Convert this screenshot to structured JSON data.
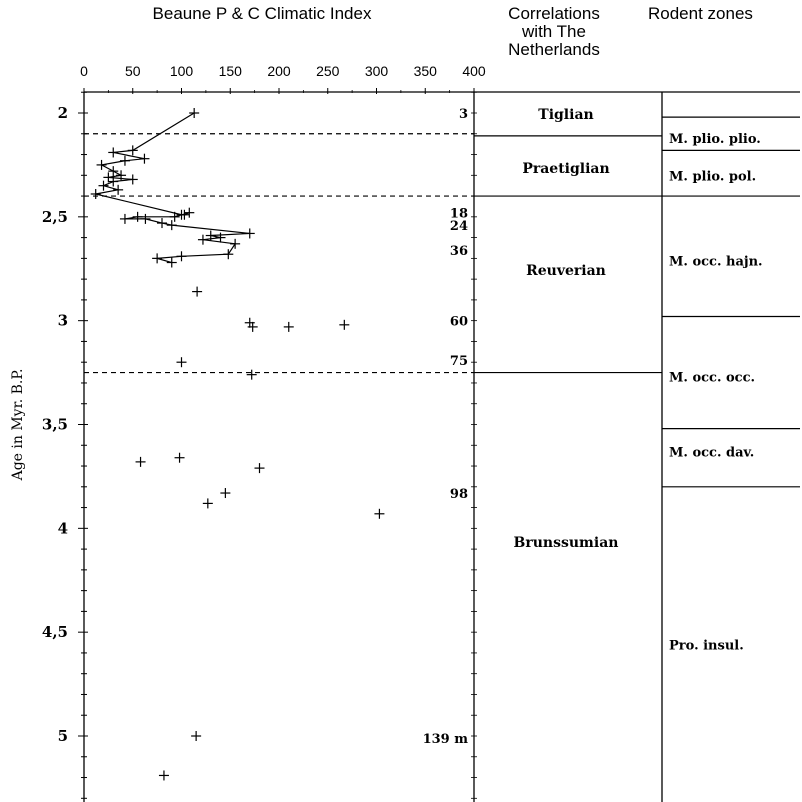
{
  "chart_data": {
    "type": "scatter",
    "title": "Beaune P & C Climatic Index",
    "ylabel": "Age in Myr. B.P.",
    "xlabel": "",
    "xlim": [
      0,
      400
    ],
    "ylim": [
      1.95,
      5.28
    ],
    "x_ticks": [
      "0",
      "50",
      "100",
      "150",
      "200",
      "250",
      "300",
      "350",
      "400"
    ],
    "y_ticks": [
      "2",
      "2,5",
      "3",
      "3,5",
      "4",
      "4,5",
      "5"
    ],
    "y_tick_values": [
      2,
      2.5,
      3,
      3.5,
      4,
      4.5,
      5
    ],
    "series": [
      {
        "connected": true,
        "points": [
          [
            113,
            2.0
          ],
          [
            50,
            2.18
          ],
          [
            30,
            2.19
          ],
          [
            62,
            2.22
          ],
          [
            42,
            2.23
          ],
          [
            18,
            2.25
          ],
          [
            30,
            2.28
          ],
          [
            38,
            2.3
          ],
          [
            25,
            2.31
          ],
          [
            50,
            2.32
          ],
          [
            30,
            2.33
          ],
          [
            20,
            2.35
          ],
          [
            35,
            2.37
          ],
          [
            12,
            2.39
          ],
          [
            100,
            2.49
          ],
          [
            103,
            2.49
          ],
          [
            108,
            2.48
          ],
          [
            93,
            2.5
          ],
          [
            55,
            2.5
          ],
          [
            42,
            2.51
          ],
          [
            63,
            2.51
          ],
          [
            80,
            2.53
          ],
          [
            90,
            2.54
          ],
          [
            170,
            2.58
          ],
          [
            130,
            2.59
          ],
          [
            140,
            2.6
          ],
          [
            122,
            2.61
          ],
          [
            155,
            2.63
          ],
          [
            148,
            2.68
          ],
          [
            100,
            2.69
          ],
          [
            75,
            2.7
          ],
          [
            90,
            2.72
          ]
        ]
      },
      {
        "connected": false,
        "points": [
          [
            116,
            2.86
          ],
          [
            170,
            3.01
          ],
          [
            173,
            3.03
          ],
          [
            210,
            3.03
          ],
          [
            267,
            3.02
          ],
          [
            100,
            3.2
          ],
          [
            172,
            3.26
          ],
          [
            58,
            3.68
          ],
          [
            98,
            3.66
          ],
          [
            180,
            3.71
          ],
          [
            145,
            3.83
          ],
          [
            127,
            3.88
          ],
          [
            303,
            3.93
          ],
          [
            115,
            5.0
          ],
          [
            82,
            5.19
          ]
        ]
      }
    ],
    "boundaries": [
      2.1,
      2.4,
      3.25
    ],
    "depth_labels": [
      {
        "label": "3",
        "age": 2.0
      },
      {
        "label": "18",
        "age": 2.48
      },
      {
        "label": "24",
        "age": 2.54
      },
      {
        "label": "36",
        "age": 2.66
      },
      {
        "label": "60",
        "age": 3.0
      },
      {
        "label": "75",
        "age": 3.19
      },
      {
        "label": "98",
        "age": 3.83
      },
      {
        "label": "139 m",
        "age": 5.01
      }
    ]
  },
  "correlations": {
    "header": [
      "Correlations",
      "with The",
      "Netherlands"
    ],
    "stages": [
      {
        "name": "Tiglian",
        "label_age": 2.0
      },
      {
        "name": "Praetiglian",
        "label_age": 2.26
      },
      {
        "name": "Reuverian",
        "label_age": 2.75
      },
      {
        "name": "Brunssumian",
        "label_age": 4.06
      }
    ],
    "lines": [
      2.11,
      2.4,
      3.25
    ]
  },
  "rodent_zones": {
    "header": "Rodent zones",
    "zones": [
      {
        "name": "M. plio. plio.",
        "label_age": 2.12
      },
      {
        "name": "M. plio. pol.",
        "label_age": 2.3
      },
      {
        "name": "M. occ. hajn.",
        "label_age": 2.71
      },
      {
        "name": "M. occ. occ.",
        "label_age": 3.27
      },
      {
        "name": "M. occ. dav.",
        "label_age": 3.63
      },
      {
        "name": "Pro. insul.",
        "label_age": 4.56
      }
    ],
    "lines": [
      2.02,
      2.18,
      2.4,
      2.98,
      3.52,
      3.8
    ]
  }
}
